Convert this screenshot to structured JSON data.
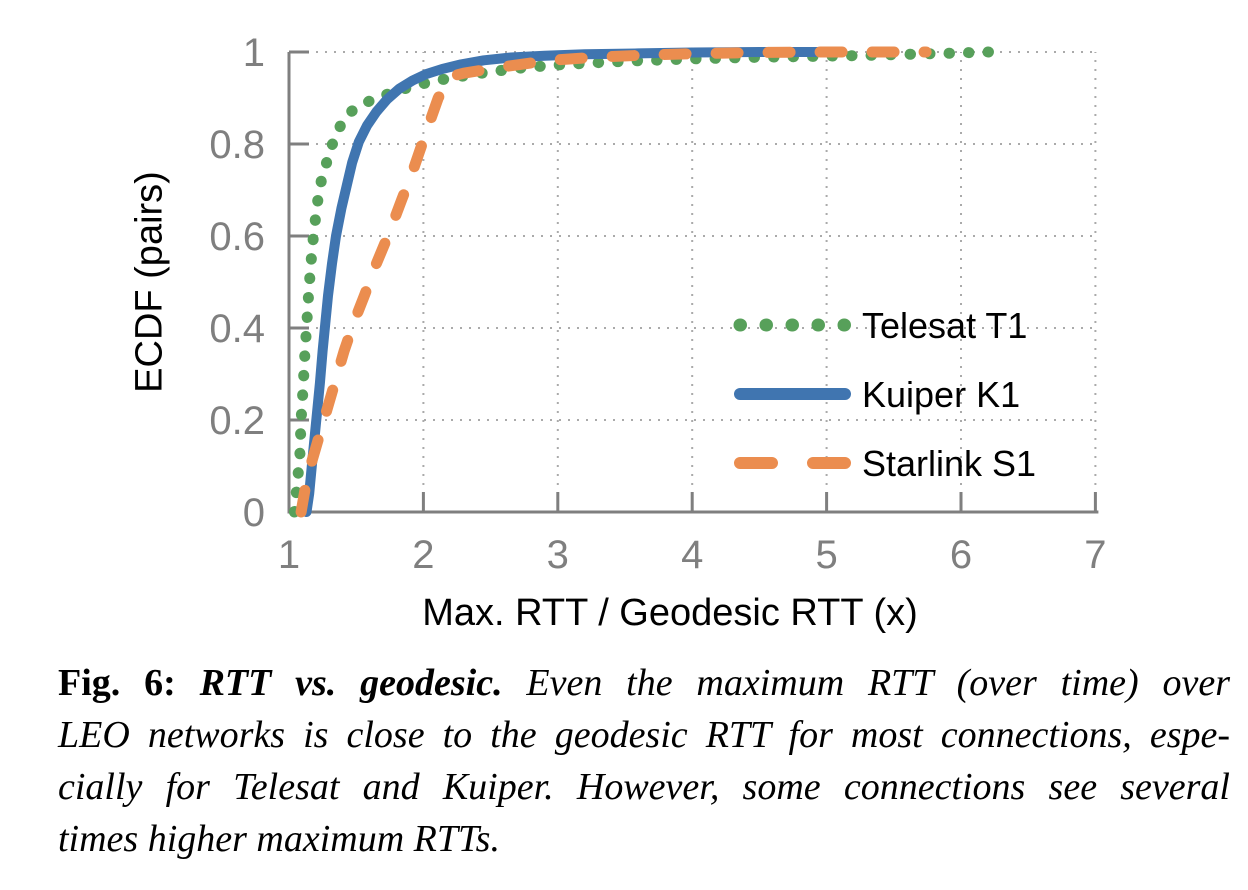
{
  "figure": {
    "caption": {
      "label": "Fig. 6:",
      "title": "RTT vs. geodesic.",
      "body": "Even the maximum RTT (over time) over LEO networks is close to the geodesic RTT for most connections, especially for Telesat and Kuiper. However, some connections see several times higher maximum RTTs.",
      "lines": [
        {
          "justify": true,
          "segments": [
            {
              "t": "Fig. 6: ",
              "s": "b"
            },
            {
              "t": "RTT vs. geodesic.",
              "s": "bi"
            },
            {
              "t": " Even the maximum RTT (over time) over",
              "s": "i"
            }
          ]
        },
        {
          "justify": true,
          "segments": [
            {
              "t": "LEO networks is close to the geodesic RTT for most connections, espe-",
              "s": "i"
            }
          ]
        },
        {
          "justify": true,
          "segments": [
            {
              "t": "cially for Telesat and Kuiper. However, some connections see several",
              "s": "i"
            }
          ]
        },
        {
          "justify": false,
          "segments": [
            {
              "t": "times higher maximum RTTs.",
              "s": "i"
            }
          ]
        }
      ]
    }
  },
  "chart_data": {
    "type": "line",
    "subtype": "ecdf",
    "title": "",
    "xlabel": "Max. RTT / Geodesic RTT (x)",
    "ylabel": "ECDF (pairs)",
    "xlim": [
      1,
      7
    ],
    "ylim": [
      0,
      1
    ],
    "x_ticks": [
      1,
      2,
      3,
      4,
      5,
      6,
      7
    ],
    "x_tick_labels": [
      "1",
      "2",
      "3",
      "4",
      "5",
      "6",
      "7"
    ],
    "y_ticks": [
      0,
      0.2,
      0.4,
      0.6,
      0.8,
      1
    ],
    "y_tick_labels": [
      "0",
      "0.2",
      "0.4",
      "0.6",
      "0.8",
      "1"
    ],
    "grid": true,
    "grid_style": "dotted",
    "legend_position": "inside-right-middle",
    "colors": {
      "axis": "#7f7f7f",
      "grid": "#aaaaaa",
      "tick_label": "#7f7f7f",
      "text": "#000000"
    },
    "series": [
      {
        "name": "Telesat T1",
        "color": "#57a05a",
        "style": "dotted",
        "points": [
          [
            1.04,
            0
          ],
          [
            1.06,
            0.06
          ],
          [
            1.08,
            0.12
          ],
          [
            1.09,
            0.2
          ],
          [
            1.105,
            0.27
          ],
          [
            1.115,
            0.33
          ],
          [
            1.13,
            0.4
          ],
          [
            1.145,
            0.47
          ],
          [
            1.16,
            0.53
          ],
          [
            1.175,
            0.58
          ],
          [
            1.19,
            0.62
          ],
          [
            1.21,
            0.67
          ],
          [
            1.24,
            0.72
          ],
          [
            1.27,
            0.75
          ],
          [
            1.31,
            0.79
          ],
          [
            1.35,
            0.82
          ],
          [
            1.4,
            0.85
          ],
          [
            1.46,
            0.87
          ],
          [
            1.55,
            0.887
          ],
          [
            1.65,
            0.9
          ],
          [
            1.78,
            0.913
          ],
          [
            1.95,
            0.928
          ],
          [
            2.1,
            0.938
          ],
          [
            2.3,
            0.948
          ],
          [
            2.5,
            0.957
          ],
          [
            2.75,
            0.966
          ],
          [
            3.0,
            0.972
          ],
          [
            3.3,
            0.977
          ],
          [
            3.6,
            0.981
          ],
          [
            4.0,
            0.985
          ],
          [
            4.4,
            0.988
          ],
          [
            4.8,
            0.99
          ],
          [
            5.2,
            0.992
          ],
          [
            5.6,
            0.995
          ],
          [
            6.0,
            0.998
          ],
          [
            6.21,
            1
          ]
        ]
      },
      {
        "name": "Kuiper K1",
        "color": "#4075b0",
        "style": "solid",
        "points": [
          [
            1.13,
            0
          ],
          [
            1.15,
            0.04
          ],
          [
            1.17,
            0.1
          ],
          [
            1.19,
            0.16
          ],
          [
            1.21,
            0.22
          ],
          [
            1.23,
            0.28
          ],
          [
            1.25,
            0.35
          ],
          [
            1.27,
            0.41
          ],
          [
            1.29,
            0.47
          ],
          [
            1.32,
            0.54
          ],
          [
            1.35,
            0.6
          ],
          [
            1.39,
            0.66
          ],
          [
            1.43,
            0.71
          ],
          [
            1.47,
            0.76
          ],
          [
            1.52,
            0.805
          ],
          [
            1.58,
            0.84
          ],
          [
            1.65,
            0.87
          ],
          [
            1.73,
            0.897
          ],
          [
            1.82,
            0.92
          ],
          [
            1.92,
            0.938
          ],
          [
            2.02,
            0.952
          ],
          [
            2.14,
            0.963
          ],
          [
            2.28,
            0.973
          ],
          [
            2.45,
            0.982
          ],
          [
            2.65,
            0.988
          ],
          [
            2.9,
            0.992
          ],
          [
            3.2,
            0.995
          ],
          [
            3.6,
            0.997
          ],
          [
            4.0,
            0.999
          ],
          [
            4.5,
            1
          ],
          [
            5.08,
            1
          ]
        ]
      },
      {
        "name": "Starlink S1",
        "color": "#eb8d4f",
        "style": "dashed",
        "points": [
          [
            1.09,
            0
          ],
          [
            1.12,
            0.05
          ],
          [
            1.16,
            0.1
          ],
          [
            1.21,
            0.15
          ],
          [
            1.27,
            0.21
          ],
          [
            1.34,
            0.28
          ],
          [
            1.41,
            0.35
          ],
          [
            1.48,
            0.41
          ],
          [
            1.56,
            0.47
          ],
          [
            1.65,
            0.54
          ],
          [
            1.75,
            0.61
          ],
          [
            1.84,
            0.68
          ],
          [
            1.92,
            0.74
          ],
          [
            1.99,
            0.8
          ],
          [
            2.05,
            0.85
          ],
          [
            2.11,
            0.9
          ],
          [
            2.17,
            0.93
          ],
          [
            2.22,
            0.948
          ],
          [
            2.3,
            0.954
          ],
          [
            2.45,
            0.961
          ],
          [
            2.6,
            0.968
          ],
          [
            2.8,
            0.976
          ],
          [
            3.0,
            0.983
          ],
          [
            3.3,
            0.989
          ],
          [
            3.7,
            0.994
          ],
          [
            4.1,
            0.997
          ],
          [
            4.5,
            0.999
          ],
          [
            4.9,
            1
          ],
          [
            5.74,
            1
          ]
        ]
      }
    ]
  }
}
